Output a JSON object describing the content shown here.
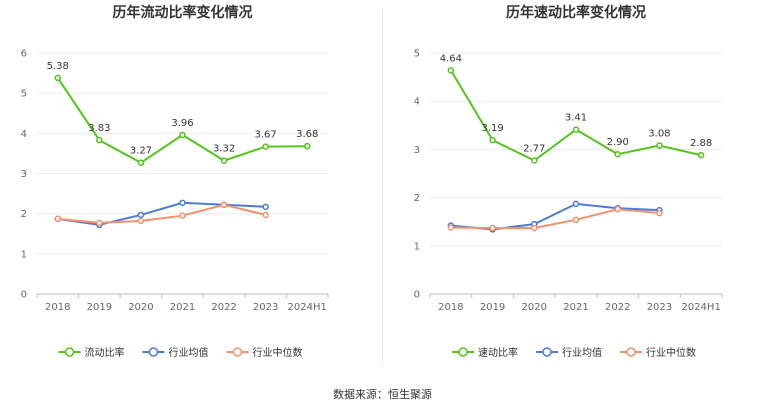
{
  "chart_data": [
    {
      "type": "line",
      "title": "历年流动比率变化情况",
      "categories": [
        "2018",
        "2019",
        "2020",
        "2021",
        "2022",
        "2023",
        "2024H1"
      ],
      "ylim": [
        0,
        6
      ],
      "yticks": [
        0,
        1,
        2,
        3,
        4,
        5,
        6
      ],
      "series": [
        {
          "name": "流动比率",
          "color": "#52c41a",
          "values": [
            5.38,
            3.83,
            3.27,
            3.96,
            3.32,
            3.67,
            3.68
          ],
          "labels": [
            "5.38",
            "3.83",
            "3.27",
            "3.96",
            "3.32",
            "3.67",
            "3.68"
          ]
        },
        {
          "name": "行业均值",
          "color": "#4a7bd8",
          "values": [
            1.87,
            1.72,
            1.97,
            2.27,
            2.22,
            2.17,
            null
          ]
        },
        {
          "name": "行业中位数",
          "color": "#f4906b",
          "values": [
            1.87,
            1.77,
            1.82,
            1.95,
            2.22,
            1.97,
            null
          ]
        }
      ]
    },
    {
      "type": "line",
      "title": "历年速动比率变化情况",
      "categories": [
        "2018",
        "2019",
        "2020",
        "2021",
        "2022",
        "2023",
        "2024H1"
      ],
      "ylim": [
        0,
        5
      ],
      "yticks": [
        0,
        1,
        2,
        3,
        4,
        5
      ],
      "series": [
        {
          "name": "速动比率",
          "color": "#52c41a",
          "values": [
            4.64,
            3.19,
            2.77,
            3.41,
            2.9,
            3.08,
            2.88
          ],
          "labels": [
            "4.64",
            "3.19",
            "2.77",
            "3.41",
            "2.90",
            "3.08",
            "2.88"
          ]
        },
        {
          "name": "行业均值",
          "color": "#4a7bd8",
          "values": [
            1.42,
            1.34,
            1.45,
            1.87,
            1.78,
            1.74,
            null
          ]
        },
        {
          "name": "行业中位数",
          "color": "#f4906b",
          "values": [
            1.38,
            1.37,
            1.37,
            1.54,
            1.76,
            1.68,
            null
          ]
        }
      ]
    }
  ],
  "source": "数据来源：恒生聚源"
}
